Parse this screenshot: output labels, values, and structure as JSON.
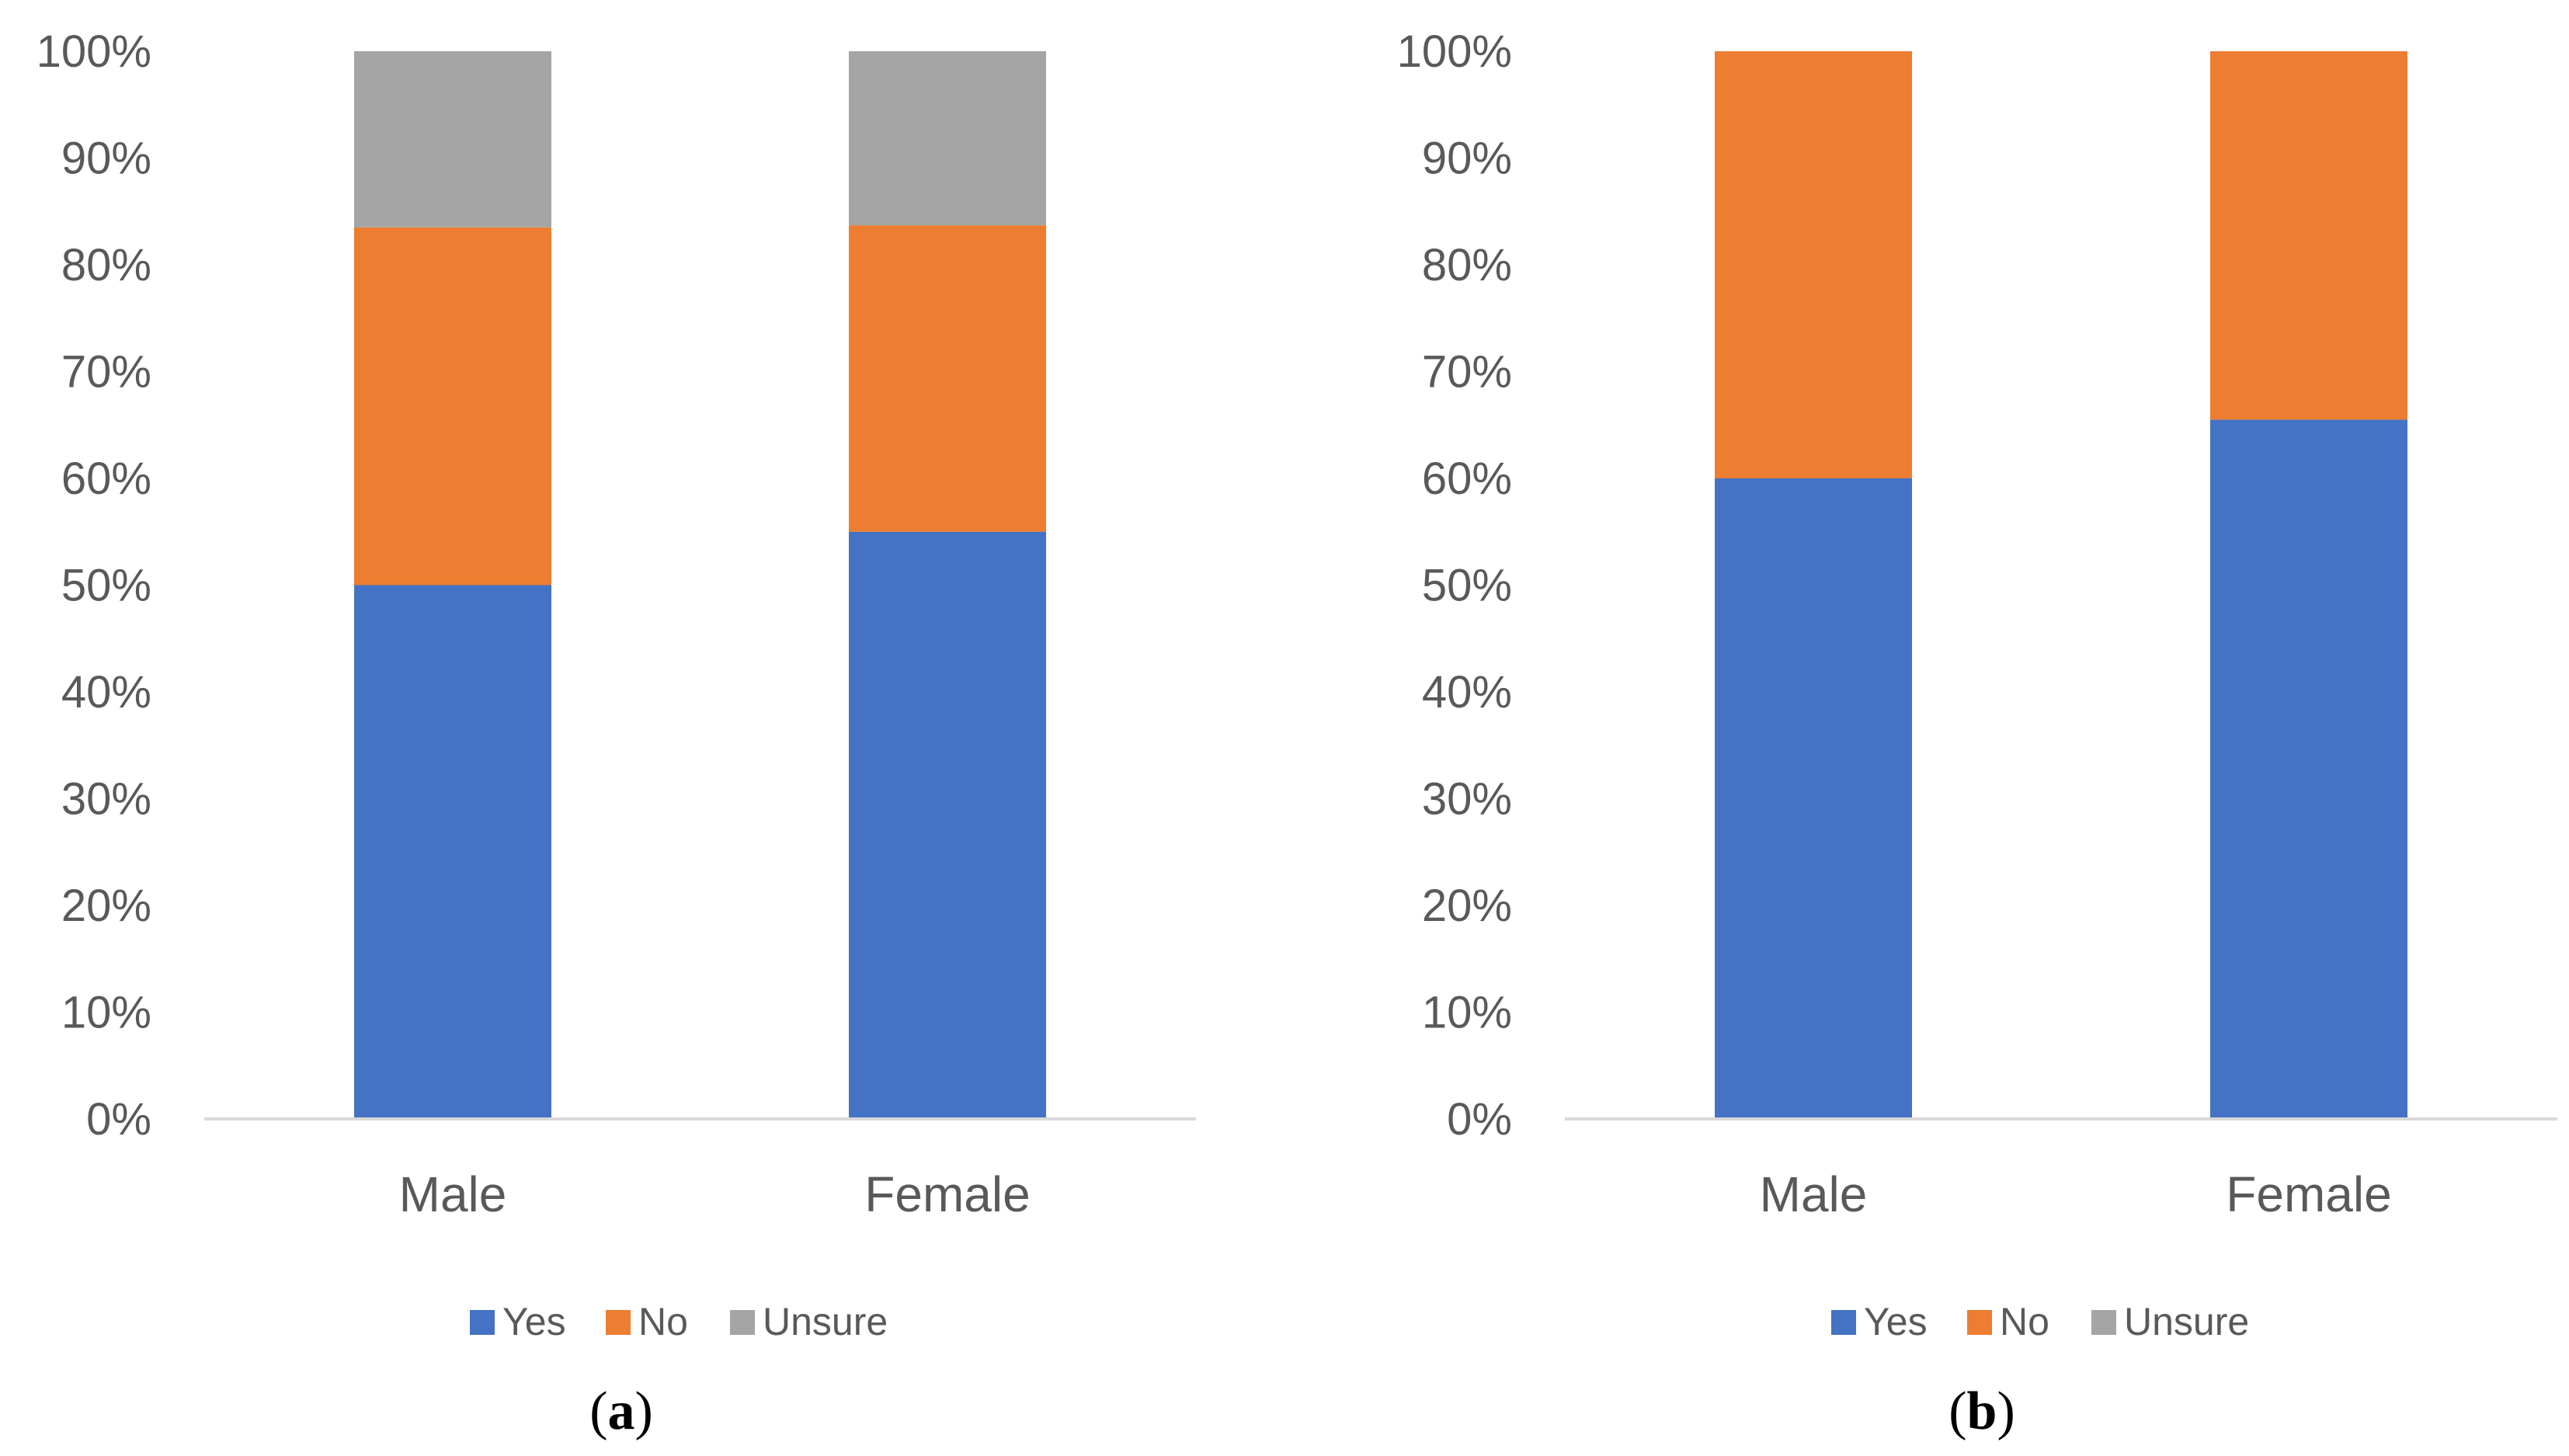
{
  "chart_data": [
    {
      "type": "bar",
      "stacked": true,
      "percent": true,
      "panel_label": "a",
      "categories": [
        "Male",
        "Female"
      ],
      "series": [
        {
          "name": "Yes",
          "values": [
            50,
            55
          ]
        },
        {
          "name": "No",
          "values": [
            33.5,
            28.7
          ]
        },
        {
          "name": "Unsure",
          "values": [
            16.5,
            16.3
          ]
        }
      ],
      "y_ticks": [
        "0%",
        "10%",
        "20%",
        "30%",
        "40%",
        "50%",
        "60%",
        "70%",
        "80%",
        "90%",
        "100%"
      ],
      "ylim": [
        0,
        100
      ],
      "legend_position": "bottom"
    },
    {
      "type": "bar",
      "stacked": true,
      "percent": true,
      "panel_label": "b",
      "categories": [
        "Male",
        "Female"
      ],
      "series": [
        {
          "name": "Yes",
          "values": [
            60,
            65.5
          ]
        },
        {
          "name": "No",
          "values": [
            40,
            34.5
          ]
        },
        {
          "name": "Unsure",
          "values": [
            0,
            0
          ]
        }
      ],
      "y_ticks": [
        "0%",
        "10%",
        "20%",
        "30%",
        "40%",
        "50%",
        "60%",
        "70%",
        "80%",
        "90%",
        "100%"
      ],
      "ylim": [
        0,
        100
      ],
      "legend_position": "bottom"
    }
  ],
  "colors": {
    "Yes": "#4472C4",
    "No": "#ED7D31",
    "Unsure": "#A5A5A5",
    "axis": "#D9D9D9"
  }
}
